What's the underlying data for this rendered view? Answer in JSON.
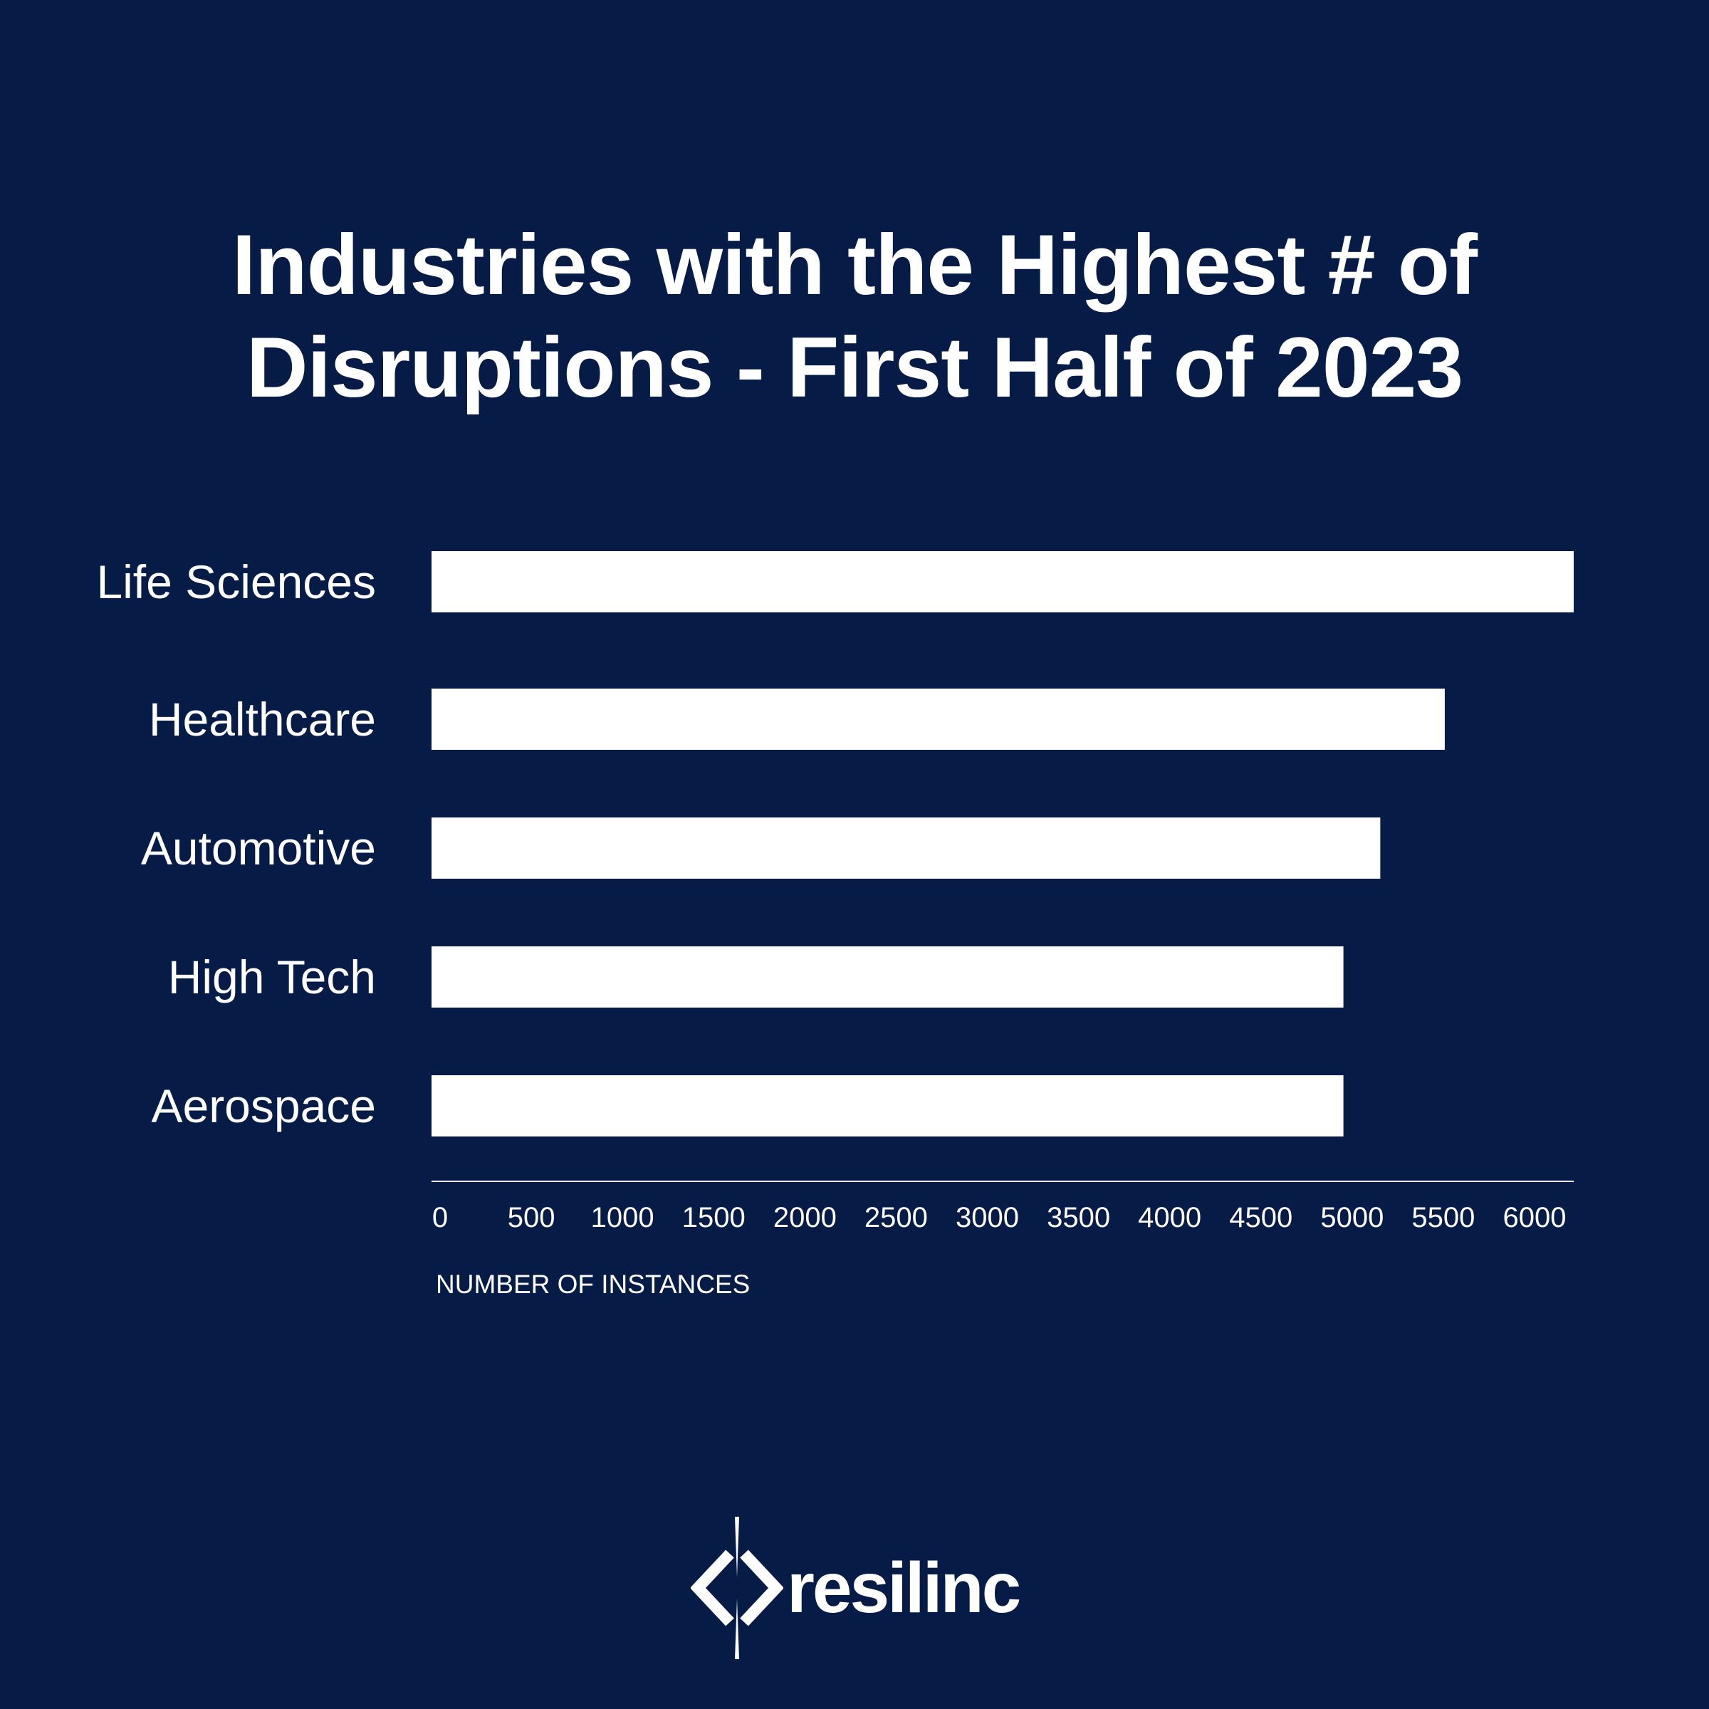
{
  "title_lines": [
    "Industries with the Highest # of",
    "Disruptions - First Half of 2023"
  ],
  "logo": {
    "text": "resilinc",
    "icon": "resilinc-diamond-icon"
  },
  "colors": {
    "background": "#061c47",
    "bar": "#ffffff",
    "text": "#ffffff"
  },
  "chart_data": {
    "type": "bar",
    "orientation": "horizontal",
    "title": "Industries with the Highest # of Disruptions - First Half of 2023",
    "categories": [
      "Life Sciences",
      "Healthcare",
      "Automotive",
      "High Tech",
      "Aerospace"
    ],
    "values": [
      6200,
      5500,
      5150,
      4950,
      4950
    ],
    "xlabel": "NUMBER OF INSTANCES",
    "ylabel": "",
    "xlim": [
      0,
      6200
    ],
    "xticks": [
      "0",
      "500",
      "1000",
      "1500",
      "2000",
      "2500",
      "3000",
      "3500",
      "4000",
      "4500",
      "5000",
      "5500",
      "6000"
    ],
    "grid": false,
    "legend": "none"
  }
}
